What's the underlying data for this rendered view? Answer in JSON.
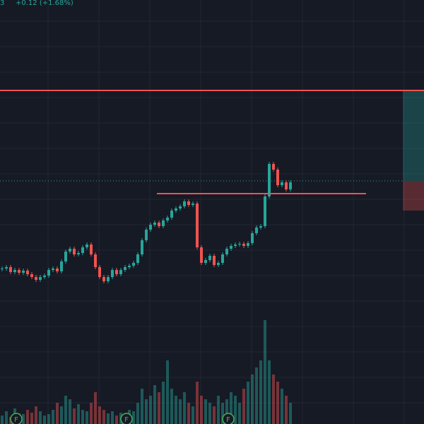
{
  "header": {
    "symbol_tail": "3",
    "change": "+0.12 (+1.68%)"
  },
  "chart_data": {
    "type": "candlestick",
    "ylim": [
      5.54,
      8.54
    ],
    "closes": [
      6.64,
      6.65,
      6.615,
      6.63,
      6.61,
      6.625,
      6.6,
      6.58,
      6.56,
      6.58,
      6.59,
      6.63,
      6.64,
      6.62,
      6.69,
      6.76,
      6.78,
      6.74,
      6.75,
      6.79,
      6.81,
      6.74,
      6.65,
      6.58,
      6.55,
      6.58,
      6.63,
      6.6,
      6.63,
      6.65,
      6.66,
      6.68,
      6.74,
      6.84,
      6.915,
      6.95,
      6.965,
      6.94,
      6.98,
      7.0,
      7.05,
      7.065,
      7.08,
      7.115,
      7.09,
      7.1,
      6.79,
      6.68,
      6.7,
      6.73,
      6.665,
      6.68,
      6.74,
      6.78,
      6.8,
      6.81,
      6.815,
      6.8,
      6.82,
      6.89,
      6.93,
      6.94,
      7.15,
      7.38,
      7.34,
      7.23,
      7.25,
      7.2,
      7.25
    ],
    "vlim": [
      0,
      200
    ],
    "volumes": [
      12,
      18,
      10,
      22,
      15,
      14,
      20,
      16,
      25,
      18,
      12,
      14,
      20,
      30,
      25,
      40,
      35,
      22,
      28,
      20,
      18,
      30,
      45,
      25,
      20,
      15,
      18,
      12,
      16,
      14,
      20,
      18,
      30,
      50,
      35,
      40,
      55,
      45,
      60,
      90,
      50,
      40,
      35,
      45,
      30,
      25,
      60,
      40,
      35,
      30,
      25,
      40,
      30,
      35,
      45,
      40,
      30,
      50,
      60,
      70,
      80,
      90,
      147,
      90,
      70,
      60,
      50,
      40,
      30
    ],
    "levels": {
      "resistance": 7.9,
      "support": 7.17,
      "last": 7.26
    },
    "events": [
      {
        "index": 3,
        "label": "F"
      },
      {
        "index": 29,
        "label": "F"
      },
      {
        "index": 53,
        "label": "F"
      }
    ]
  }
}
